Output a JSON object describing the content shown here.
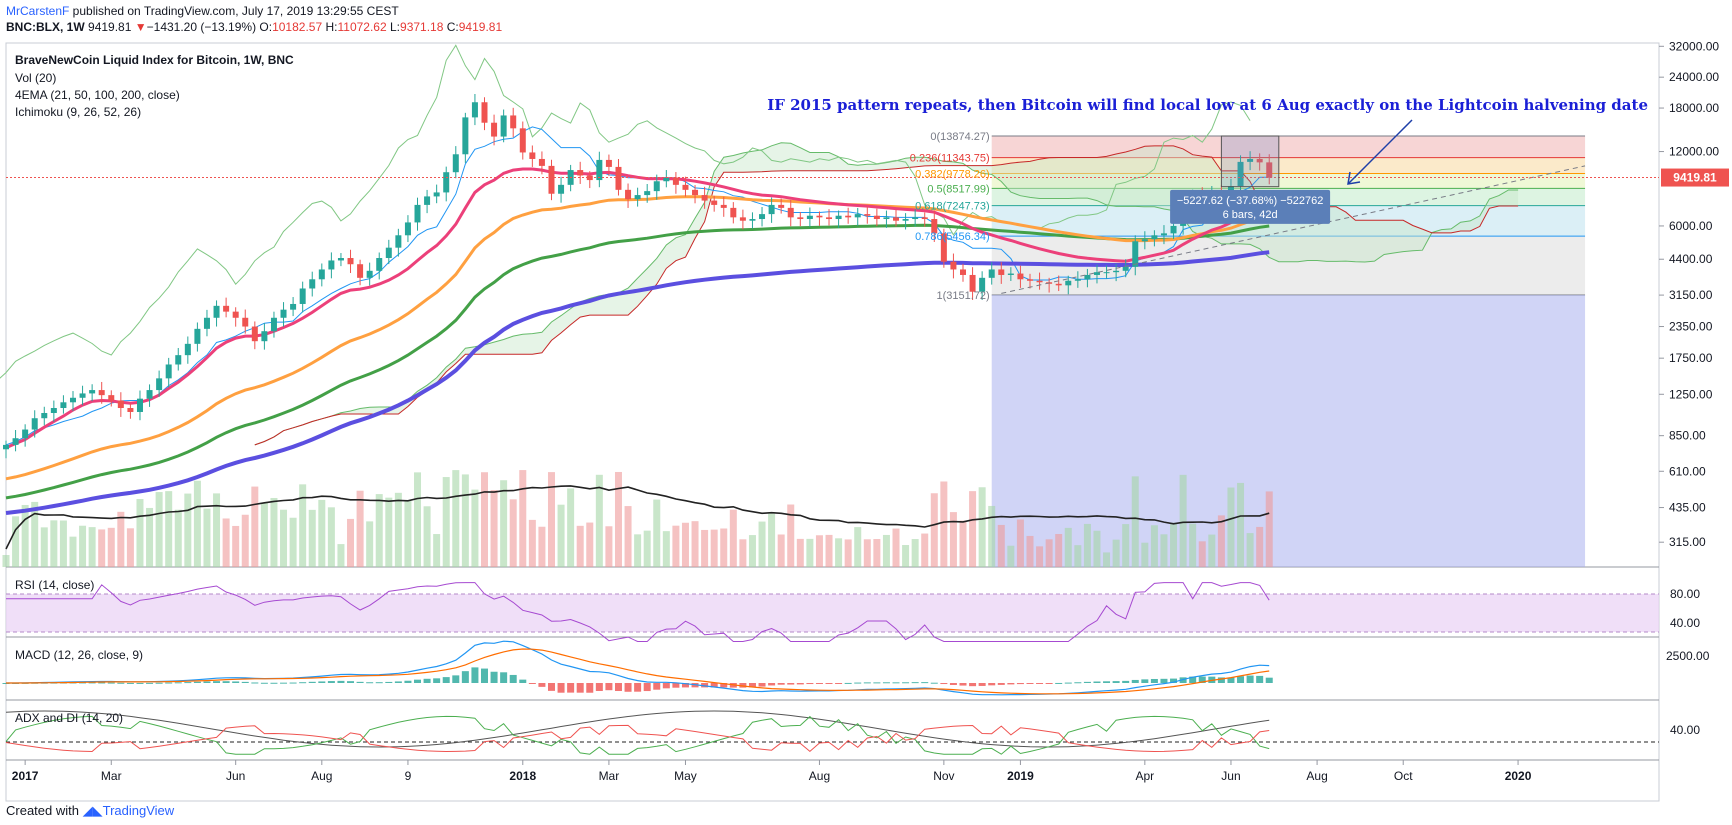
{
  "header": {
    "author": "MrCarstenF",
    "published": " published on TradingView.com, July 17, 2019 13:29:55 CEST",
    "symbol": "BNC:BLX, 1W",
    "last": "9419.81",
    "change_arrow": "▼",
    "change": "−1431.20 (−13.19%)",
    "open_label": "O:",
    "open": "10182.57",
    "high_label": "H:",
    "high": "11072.62",
    "low_label": "L:",
    "low": "9371.18",
    "close_label": "C:",
    "close": "9419.81"
  },
  "legend": {
    "title": "BraveNewCoin Liquid Index for Bitcoin, 1W, BNC",
    "vol": "Vol (20)",
    "ema": "4EMA (21, 50, 100, 200, close)",
    "ichimoku": "Ichimoku (9, 26, 52, 26)"
  },
  "annotation": "IF 2015 pattern repeats, then Bitcoin will find local low at 6 Aug exactly on the Lightcoin halvening date",
  "measure": {
    "line1": "−5227.62 (−37.68%) −522762",
    "line2": "6 bars, 42d"
  },
  "price_badge": "9419.81",
  "fib_levels": [
    {
      "label": "0(13874.27)",
      "price": 13874.27,
      "color": "#787b86",
      "fill": "#f4c7c7"
    },
    {
      "label": "0.236(11343.75)",
      "price": 11343.75,
      "color": "#e53935",
      "fill": "#f9e3b8"
    },
    {
      "label": "0.382(9778.26)",
      "price": 9778.26,
      "color": "#ff9800",
      "fill": "#eaf5c8"
    },
    {
      "label": "0.5(8517.99)",
      "price": 8517.99,
      "color": "#4caf50",
      "fill": "#d2f0d8"
    },
    {
      "label": "0.618(7247.73)",
      "price": 7247.73,
      "color": "#26a69a",
      "fill": "#cfeaf3"
    },
    {
      "label": "0.786(5456.34)",
      "price": 5456.34,
      "color": "#2196f3",
      "fill": "#e6e6e6"
    },
    {
      "label": "1(3151.72)",
      "price": 3151.72,
      "color": "#787b86",
      "fill": null
    }
  ],
  "panes": {
    "rsi": {
      "label": "RSI (14, close)",
      "ticks": [
        "80.00",
        "40.00"
      ]
    },
    "macd": {
      "label": "MACD (12, 26, close, 9)",
      "ticks": [
        "2500.00"
      ]
    },
    "adx": {
      "label": "ADX and DI (14, 20)",
      "ticks": [
        "40.00"
      ]
    }
  },
  "footer": {
    "created": "Created with",
    "brand": "TradingView"
  },
  "colors": {
    "up": "#26a69a",
    "down": "#ef5350",
    "ema21": "#ec407a",
    "ema50": "#ffa040",
    "ema100": "#43a047",
    "ema200": "#5b4fe0",
    "rsi": "#a64ad1",
    "macd": "#2196f3",
    "signal": "#ff6d00",
    "badge": "#ef5350",
    "annotation": "#1a1fd6"
  },
  "chart_data": {
    "type": "candlestick",
    "title": "BraveNewCoin Liquid Index for Bitcoin, 1W, BNC",
    "yscale": "log",
    "ylim": [
      250,
      33000
    ],
    "y_ticks": [
      32000,
      24000,
      18000,
      12000,
      6000,
      4400,
      3150,
      2350,
      1750,
      1250,
      850,
      610,
      435,
      315
    ],
    "y_tick_labels": [
      "32000.00",
      "24000.00",
      "18000.00",
      "12000.00",
      "6000.00",
      "4400.00",
      "3150.00",
      "2350.00",
      "1750.00",
      "1250.00",
      "850.00",
      "610.00",
      "435.00",
      "315.00"
    ],
    "x_ticks": [
      "2017",
      "Mar",
      "Jun",
      "Aug",
      "9",
      "2018",
      "Mar",
      "May",
      "Aug",
      "Nov",
      "2019",
      "Apr",
      "Jun",
      "Aug",
      "Oct",
      "2020"
    ],
    "x_tick_weeks": [
      2,
      11,
      24,
      33,
      42,
      54,
      63,
      71,
      85,
      98,
      106,
      119,
      128,
      137,
      146,
      158
    ],
    "bold_ticks": [
      "2017",
      "2018",
      "2019",
      "2020"
    ],
    "close_series": [
      780,
      830,
      900,
      1000,
      1050,
      1100,
      1160,
      1210,
      1260,
      1300,
      1240,
      1180,
      1100,
      1060,
      1200,
      1300,
      1450,
      1650,
      1800,
      2000,
      2300,
      2550,
      2850,
      2700,
      2550,
      2350,
      2050,
      2250,
      2550,
      2750,
      2900,
      3350,
      3650,
      4000,
      4350,
      4450,
      4200,
      3700,
      3950,
      4450,
      4900,
      5500,
      6200,
      7300,
      7900,
      8200,
      9900,
      11700,
      16500,
      19000,
      15700,
      13800,
      16800,
      14900,
      11900,
      11200,
      10500,
      8100,
      8800,
      10100,
      9600,
      9200,
      11100,
      10400,
      8400,
      7700,
      8000,
      8300,
      9100,
      9400,
      8800,
      8400,
      8000,
      7600,
      7300,
      7100,
      6500,
      6300,
      6400,
      6700,
      7300,
      7100,
      6500,
      6400,
      6600,
      6500,
      6400,
      6600,
      6500,
      6700,
      6600,
      6400,
      6500,
      6300,
      6400,
      6500,
      6400,
      5600,
      4300,
      4000,
      3800,
      3250,
      3700,
      4000,
      3800,
      3850,
      3650,
      3600,
      3550,
      3500,
      3450,
      3600,
      3650,
      3800,
      3900,
      3900,
      3950,
      4100,
      5200,
      5300,
      5500,
      5600,
      6000,
      7700,
      8000,
      7900,
      8200,
      7700,
      8700,
      10900,
      11200,
      10850,
      9420
    ],
    "ema21_series": [
      760,
      790,
      820,
      870,
      920,
      970,
      1020,
      1080,
      1130,
      1170,
      1180,
      1175,
      1160,
      1150,
      1160,
      1190,
      1240,
      1320,
      1400,
      1500,
      1620,
      1760,
      1920,
      2030,
      2110,
      2150,
      2150,
      2180,
      2250,
      2330,
      2420,
      2540,
      2680,
      2850,
      3030,
      3200,
      3300,
      3330,
      3390,
      3490,
      3620,
      3800,
      4030,
      4350,
      4680,
      5000,
      5470,
      6100,
      7100,
      8200,
      8800,
      9200,
      9800,
      10100,
      10200,
      10200,
      10100,
      9900,
      9800,
      9800,
      9780,
      9740,
      9850,
      9880,
      9750,
      9580,
      9440,
      9330,
      9320,
      9330,
      9300,
      9220,
      9100,
      8960,
      8800,
      8630,
      8440,
      8250,
      8100,
      8000,
      7950,
      7880,
      7770,
      7660,
      7580,
      7500,
      7420,
      7360,
      7300,
      7260,
      7220,
      7160,
      7110,
      7050,
      7000,
      6960,
      6910,
      6820,
      6590,
      6360,
      6120,
      5860,
      5660,
      5520,
      5370,
      5240,
      5100,
      4970,
      4850,
      4740,
      4640,
      4560,
      4490,
      4440,
      4400,
      4370,
      4340,
      4320,
      4400,
      4480,
      4570,
      4660,
      4780,
      5050,
      5310,
      5540,
      5770,
      5940,
      6190,
      6610,
      7010,
      7370,
      7550
    ],
    "ema50_series_start": 560,
    "ema100_series_start": 470,
    "ema200_series_start": 410,
    "volume_note": "weekly volume bars, no axis labels",
    "rsi_range": [
      40,
      80
    ],
    "adx_level": 40
  }
}
